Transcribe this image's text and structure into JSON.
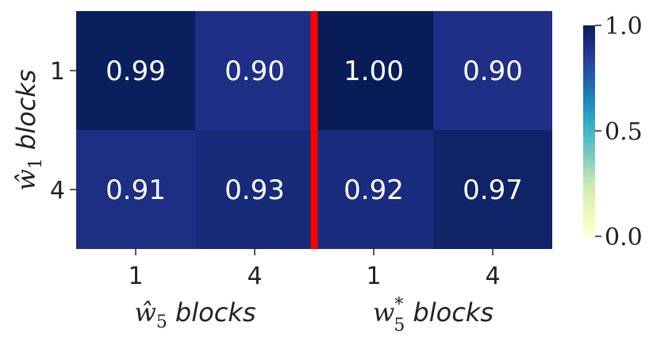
{
  "chart_data": {
    "type": "heatmap",
    "title": "",
    "rows": [
      "1",
      "4"
    ],
    "columns": [
      "1",
      "4",
      "1",
      "4"
    ],
    "values": [
      [
        0.99,
        0.9,
        1.0,
        0.9
      ],
      [
        0.91,
        0.93,
        0.92,
        0.97
      ]
    ],
    "value_labels": [
      [
        "0.99",
        "0.90",
        "1.00",
        "0.90"
      ],
      [
        "0.91",
        "0.93",
        "0.92",
        "0.97"
      ]
    ],
    "ylabel": {
      "symbol": "ŵ",
      "subscript": "1",
      "text": "blocks"
    },
    "xlabel_groups": [
      {
        "symbol": "ŵ",
        "subscript": "5",
        "superscript": "",
        "text": "blocks"
      },
      {
        "symbol": "w",
        "subscript": "5",
        "superscript": "*",
        "text": "blocks"
      }
    ],
    "colorbar": {
      "colormap": "YlGnBu",
      "range": [
        0.0,
        1.0
      ],
      "ticks": [
        "0.0",
        "0.5",
        "1.0"
      ]
    },
    "separator": {
      "after_column": 2,
      "color": "#ff0000"
    }
  }
}
